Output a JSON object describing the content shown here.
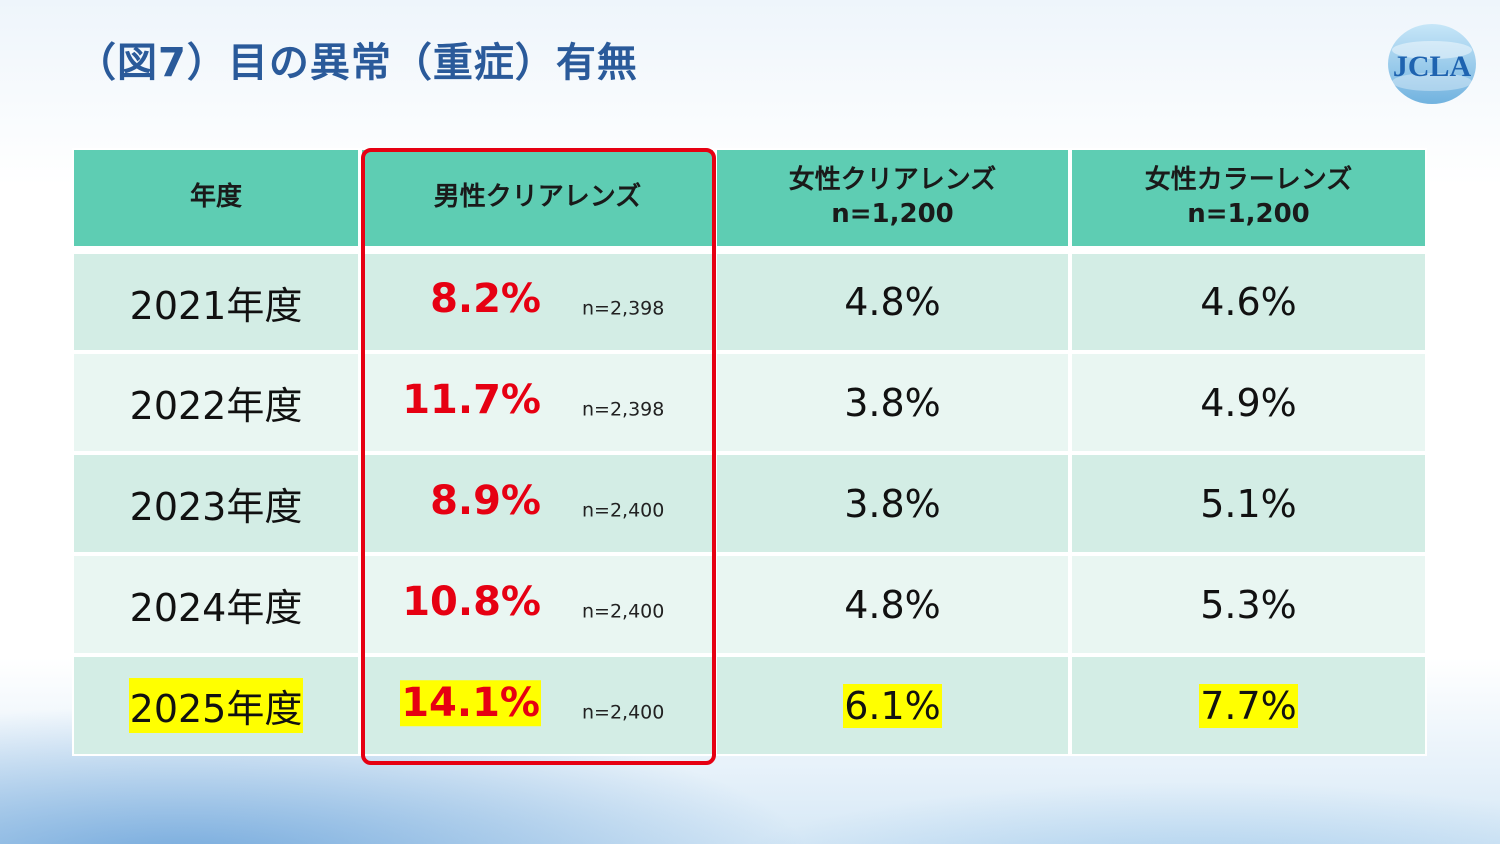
{
  "header": {
    "title": "（図7）目の異常（重症）有無",
    "logo_text": "JCLA"
  },
  "table": {
    "columns": [
      {
        "label": "年度",
        "sub": ""
      },
      {
        "label": "男性クリアレンズ",
        "sub": ""
      },
      {
        "label": "女性クリアレンズ",
        "sub": "n=1,200"
      },
      {
        "label": "女性カラーレンズ",
        "sub": "n=1,200"
      }
    ],
    "rows": [
      {
        "year": "2021年度",
        "men_value": "8.2%",
        "men_n": "n=2,398",
        "women_clear": "4.8%",
        "women_color": "4.6%"
      },
      {
        "year": "2022年度",
        "men_value": "11.7%",
        "men_n": "n=2,398",
        "women_clear": "3.8%",
        "women_color": "4.9%"
      },
      {
        "year": "2023年度",
        "men_value": "8.9%",
        "men_n": "n=2,400",
        "women_clear": "3.8%",
        "women_color": "5.1%"
      },
      {
        "year": "2024年度",
        "men_value": "10.8%",
        "men_n": "n=2,400",
        "women_clear": "4.8%",
        "women_color": "5.3%"
      },
      {
        "year": "2025年度",
        "men_value": "14.1%",
        "men_n": "n=2,400",
        "women_clear": "6.1%",
        "women_color": "7.7%"
      }
    ]
  },
  "colors": {
    "title": "#2a5a9a",
    "header_bg": "#5ecdb3",
    "row_odd": "#d3ede5",
    "row_even": "#e9f6f2",
    "accent_red": "#e60012",
    "highlight": "#ffff00"
  }
}
